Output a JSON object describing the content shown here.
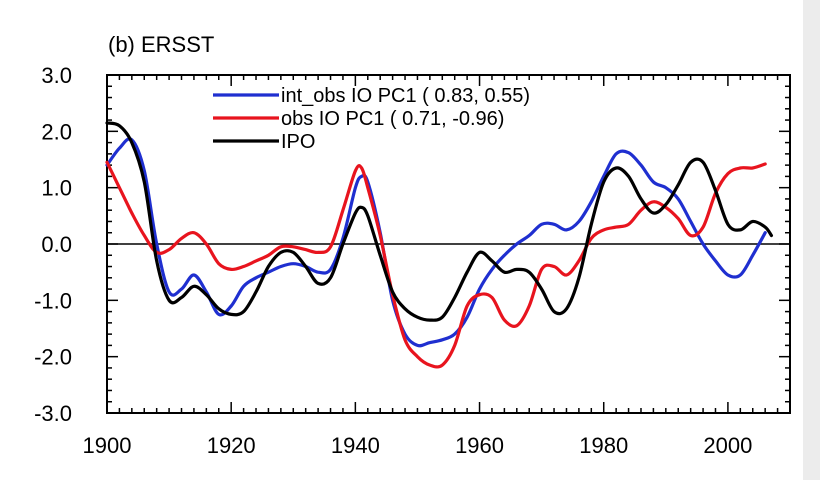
{
  "chart_data": {
    "type": "line",
    "title": "(b) ERSST",
    "xlim": [
      1900,
      2010
    ],
    "ylim": [
      -3.0,
      3.0
    ],
    "x_ticks": [
      1900,
      1920,
      1940,
      1960,
      1980,
      2000
    ],
    "x_tick_labels": [
      "1900",
      "1920",
      "1940",
      "1960",
      "1980",
      "2000"
    ],
    "y_ticks": [
      -3,
      -2,
      -1,
      0,
      1,
      2,
      3
    ],
    "y_tick_labels": [
      "-3.0",
      "-2.0",
      "-1.0",
      "0.0",
      "1.0",
      "2.0",
      "3.0"
    ],
    "zero_line": true,
    "legend": {
      "placement": "top-center",
      "entries": [
        {
          "label": "int_obs IO PC1 ( 0.83,  0.55)",
          "color": "#1f2fd0"
        },
        {
          "label": "obs IO PC1 ( 0.71, -0.96)",
          "color": "#e8141e"
        },
        {
          "label": "IPO",
          "color": "#000000"
        }
      ]
    },
    "series": [
      {
        "name": "int_obs IO PC1 ( 0.83,  0.55)",
        "color": "#1f2fd0",
        "points": [
          [
            1900,
            1.4
          ],
          [
            1902,
            1.7
          ],
          [
            1904,
            1.85
          ],
          [
            1906,
            1.3
          ],
          [
            1908,
            0.0
          ],
          [
            1910,
            -0.85
          ],
          [
            1912,
            -0.8
          ],
          [
            1914,
            -0.55
          ],
          [
            1916,
            -0.85
          ],
          [
            1918,
            -1.25
          ],
          [
            1920,
            -1.1
          ],
          [
            1922,
            -0.75
          ],
          [
            1924,
            -0.6
          ],
          [
            1926,
            -0.5
          ],
          [
            1928,
            -0.4
          ],
          [
            1930,
            -0.35
          ],
          [
            1932,
            -0.4
          ],
          [
            1934,
            -0.5
          ],
          [
            1936,
            -0.45
          ],
          [
            1938,
            0.1
          ],
          [
            1940,
            1.0
          ],
          [
            1941,
            1.2
          ],
          [
            1942,
            1.1
          ],
          [
            1944,
            0.2
          ],
          [
            1946,
            -1.0
          ],
          [
            1948,
            -1.6
          ],
          [
            1950,
            -1.8
          ],
          [
            1952,
            -1.75
          ],
          [
            1954,
            -1.7
          ],
          [
            1956,
            -1.6
          ],
          [
            1958,
            -1.3
          ],
          [
            1960,
            -0.8
          ],
          [
            1962,
            -0.45
          ],
          [
            1964,
            -0.2
          ],
          [
            1966,
            0.0
          ],
          [
            1968,
            0.15
          ],
          [
            1970,
            0.35
          ],
          [
            1972,
            0.35
          ],
          [
            1974,
            0.25
          ],
          [
            1976,
            0.4
          ],
          [
            1978,
            0.75
          ],
          [
            1980,
            1.2
          ],
          [
            1982,
            1.6
          ],
          [
            1984,
            1.62
          ],
          [
            1986,
            1.4
          ],
          [
            1988,
            1.1
          ],
          [
            1990,
            1.0
          ],
          [
            1992,
            0.8
          ],
          [
            1994,
            0.4
          ],
          [
            1996,
            0.0
          ],
          [
            1998,
            -0.3
          ],
          [
            2000,
            -0.55
          ],
          [
            2002,
            -0.55
          ],
          [
            2004,
            -0.2
          ],
          [
            2006,
            0.2
          ]
        ]
      },
      {
        "name": "obs IO PC1 ( 0.71, -0.96)",
        "color": "#e8141e",
        "points": [
          [
            1900,
            1.45
          ],
          [
            1902,
            1.0
          ],
          [
            1904,
            0.55
          ],
          [
            1906,
            0.15
          ],
          [
            1908,
            -0.15
          ],
          [
            1910,
            -0.1
          ],
          [
            1912,
            0.1
          ],
          [
            1914,
            0.2
          ],
          [
            1916,
            0.0
          ],
          [
            1918,
            -0.35
          ],
          [
            1920,
            -0.45
          ],
          [
            1922,
            -0.4
          ],
          [
            1924,
            -0.3
          ],
          [
            1926,
            -0.2
          ],
          [
            1928,
            -0.05
          ],
          [
            1930,
            -0.05
          ],
          [
            1932,
            -0.1
          ],
          [
            1934,
            -0.15
          ],
          [
            1936,
            -0.05
          ],
          [
            1938,
            0.6
          ],
          [
            1940,
            1.3
          ],
          [
            1941,
            1.35
          ],
          [
            1942,
            1.0
          ],
          [
            1944,
            0.15
          ],
          [
            1946,
            -0.9
          ],
          [
            1948,
            -1.7
          ],
          [
            1950,
            -2.0
          ],
          [
            1952,
            -2.15
          ],
          [
            1954,
            -2.15
          ],
          [
            1956,
            -1.8
          ],
          [
            1958,
            -1.1
          ],
          [
            1960,
            -0.9
          ],
          [
            1962,
            -0.95
          ],
          [
            1964,
            -1.35
          ],
          [
            1966,
            -1.45
          ],
          [
            1968,
            -1.1
          ],
          [
            1970,
            -0.45
          ],
          [
            1972,
            -0.4
          ],
          [
            1974,
            -0.55
          ],
          [
            1976,
            -0.3
          ],
          [
            1978,
            0.1
          ],
          [
            1980,
            0.25
          ],
          [
            1982,
            0.3
          ],
          [
            1984,
            0.35
          ],
          [
            1986,
            0.6
          ],
          [
            1988,
            0.75
          ],
          [
            1990,
            0.65
          ],
          [
            1992,
            0.45
          ],
          [
            1994,
            0.15
          ],
          [
            1996,
            0.3
          ],
          [
            1998,
            0.9
          ],
          [
            2000,
            1.25
          ],
          [
            2002,
            1.35
          ],
          [
            2004,
            1.35
          ],
          [
            2006,
            1.42
          ]
        ]
      },
      {
        "name": "IPO",
        "color": "#000000",
        "points": [
          [
            1900,
            2.15
          ],
          [
            1902,
            2.1
          ],
          [
            1904,
            1.8
          ],
          [
            1906,
            1.1
          ],
          [
            1908,
            -0.3
          ],
          [
            1910,
            -1.0
          ],
          [
            1912,
            -0.95
          ],
          [
            1914,
            -0.75
          ],
          [
            1916,
            -0.9
          ],
          [
            1918,
            -1.15
          ],
          [
            1920,
            -1.25
          ],
          [
            1922,
            -1.2
          ],
          [
            1924,
            -0.85
          ],
          [
            1926,
            -0.4
          ],
          [
            1928,
            -0.15
          ],
          [
            1930,
            -0.15
          ],
          [
            1932,
            -0.4
          ],
          [
            1934,
            -0.7
          ],
          [
            1936,
            -0.6
          ],
          [
            1938,
            0.0
          ],
          [
            1940,
            0.55
          ],
          [
            1941,
            0.65
          ],
          [
            1942,
            0.5
          ],
          [
            1944,
            -0.2
          ],
          [
            1946,
            -0.85
          ],
          [
            1948,
            -1.15
          ],
          [
            1950,
            -1.3
          ],
          [
            1952,
            -1.35
          ],
          [
            1954,
            -1.3
          ],
          [
            1956,
            -0.95
          ],
          [
            1958,
            -0.5
          ],
          [
            1960,
            -0.15
          ],
          [
            1962,
            -0.3
          ],
          [
            1964,
            -0.5
          ],
          [
            1966,
            -0.45
          ],
          [
            1968,
            -0.5
          ],
          [
            1970,
            -0.8
          ],
          [
            1972,
            -1.2
          ],
          [
            1974,
            -1.15
          ],
          [
            1976,
            -0.6
          ],
          [
            1978,
            0.35
          ],
          [
            1980,
            1.1
          ],
          [
            1982,
            1.35
          ],
          [
            1984,
            1.2
          ],
          [
            1986,
            0.8
          ],
          [
            1988,
            0.55
          ],
          [
            1990,
            0.7
          ],
          [
            1992,
            1.05
          ],
          [
            1994,
            1.45
          ],
          [
            1996,
            1.45
          ],
          [
            1998,
            0.95
          ],
          [
            2000,
            0.35
          ],
          [
            2002,
            0.25
          ],
          [
            2004,
            0.4
          ],
          [
            2006,
            0.3
          ],
          [
            2007,
            0.15
          ]
        ]
      }
    ]
  }
}
